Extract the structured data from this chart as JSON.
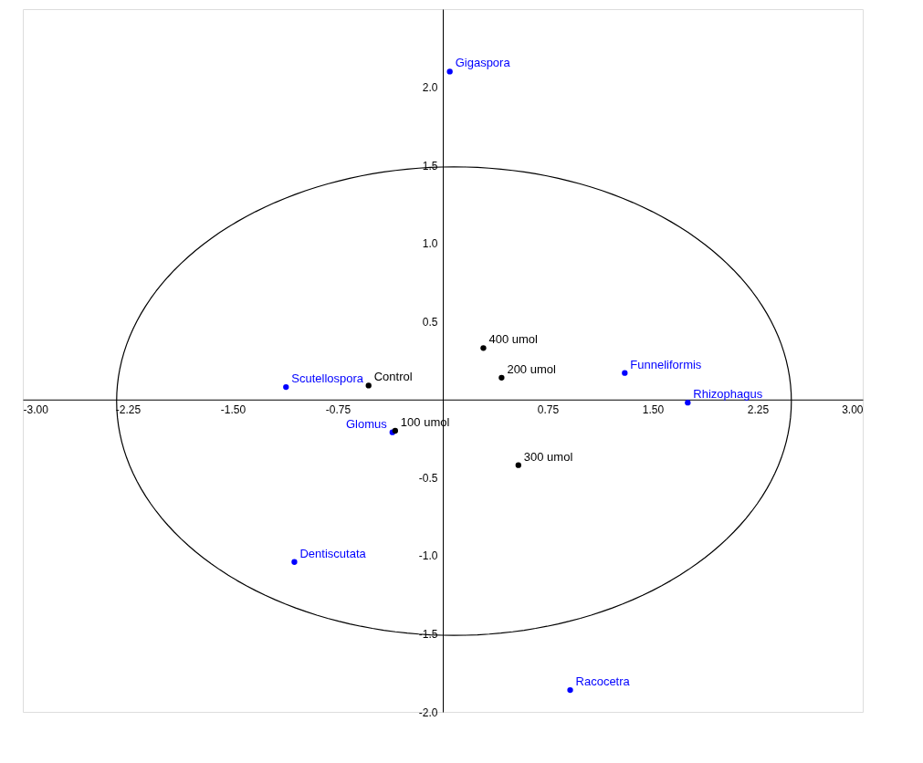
{
  "chart_data": {
    "type": "scatter",
    "xlim": [
      -3,
      3
    ],
    "ylim": [
      -2,
      2.5
    ],
    "xticks": [
      {
        "value": -3,
        "label": "-3.00"
      },
      {
        "value": -2.25,
        "label": "-2.25"
      },
      {
        "value": -1.5,
        "label": "-1.50"
      },
      {
        "value": -0.75,
        "label": "-0.75"
      },
      {
        "value": 0.75,
        "label": "0.75"
      },
      {
        "value": 1.5,
        "label": "1.50"
      },
      {
        "value": 2.25,
        "label": "2.25"
      },
      {
        "value": 3,
        "label": "3.00"
      }
    ],
    "yticks": [
      {
        "value": -2,
        "label": "-2.0"
      },
      {
        "value": -1.5,
        "label": "-1.5"
      },
      {
        "value": -1,
        "label": "-1.0"
      },
      {
        "value": -0.5,
        "label": "-0.5"
      },
      {
        "value": 0.5,
        "label": "0.5"
      },
      {
        "value": 1,
        "label": "1.0"
      },
      {
        "value": 1.5,
        "label": "1.5"
      },
      {
        "value": 2,
        "label": "2.0"
      }
    ],
    "grid": false,
    "marker": "circle",
    "series": [
      {
        "color": "#0000ff",
        "x": [
          0.05,
          -1.12,
          1.3,
          1.75,
          -0.36,
          -1.06,
          0.91
        ],
        "values": [
          2.1,
          0.08,
          0.17,
          -0.02,
          -0.21,
          -1.04,
          -1.86
        ]
      },
      {
        "color": "#000000",
        "x": [
          -0.53,
          0.29,
          0.42,
          -0.34,
          0.54
        ],
        "values": [
          0.09,
          0.33,
          0.14,
          -0.2,
          -0.42
        ]
      }
    ],
    "annotations": [
      {
        "text": "Gigaspora",
        "x": 0.05,
        "y": 2.1
      },
      {
        "text": "Scutellospora",
        "x": -1.12,
        "y": 0.08
      },
      {
        "text": "Funneliformis",
        "x": 1.3,
        "y": 0.17
      },
      {
        "text": "Rhizophagus",
        "x": 1.75,
        "y": -0.02
      },
      {
        "text": "Glomus",
        "x": -0.36,
        "y": -0.21
      },
      {
        "text": "Dentiscutata",
        "x": -1.06,
        "y": -1.04
      },
      {
        "text": "Racocetra",
        "x": 0.91,
        "y": -1.86
      },
      {
        "text": "Control",
        "x": -0.53,
        "y": 0.09
      },
      {
        "text": "400 umol",
        "x": 0.29,
        "y": 0.33
      },
      {
        "text": "200 umol",
        "x": 0.42,
        "y": 0.14
      },
      {
        "text": "100 umol",
        "x": -0.34,
        "y": -0.2
      },
      {
        "text": "300 umol",
        "x": 0.54,
        "y": -0.42
      }
    ]
  }
}
